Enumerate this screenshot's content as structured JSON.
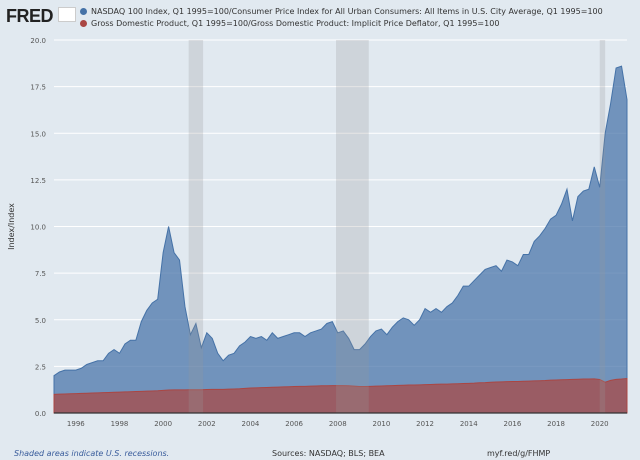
{
  "logo": "FRED",
  "chart_data": {
    "type": "area",
    "ylabel": "Index/Index",
    "ylim": [
      0,
      20
    ],
    "xlim": [
      1995,
      2021.25
    ],
    "yticks": [
      "0.0",
      "2.5",
      "5.0",
      "7.5",
      "10.0",
      "12.5",
      "15.0",
      "17.5",
      "20.0"
    ],
    "xticks": [
      "1996",
      "1998",
      "2000",
      "2002",
      "2004",
      "2006",
      "2008",
      "2010",
      "2012",
      "2014",
      "2016",
      "2018",
      "2020"
    ],
    "grid": true,
    "legend_placement": "top",
    "recessions": [
      [
        2001.17,
        2001.83
      ],
      [
        2007.92,
        2009.42
      ],
      [
        2020.0,
        2020.25
      ]
    ],
    "series": [
      {
        "name": "NASDAQ 100 Index, Q1 1995=100/Consumer Price Index for All Urban Consumers: All Items in U.S. City Average, Q1 1995=100",
        "color": "#4572a7",
        "start": 1995,
        "step": 0.25,
        "values": [
          2.0,
          2.2,
          2.3,
          2.3,
          2.3,
          2.4,
          2.6,
          2.7,
          2.8,
          2.8,
          3.2,
          3.4,
          3.2,
          3.7,
          3.9,
          3.9,
          4.9,
          5.5,
          5.9,
          6.1,
          8.6,
          10.0,
          8.6,
          8.2,
          5.7,
          4.2,
          4.8,
          3.5,
          4.3,
          4.0,
          3.2,
          2.8,
          3.1,
          3.2,
          3.6,
          3.8,
          4.1,
          4.0,
          4.1,
          3.9,
          4.3,
          4.0,
          4.1,
          4.2,
          4.3,
          4.3,
          4.1,
          4.3,
          4.4,
          4.5,
          4.8,
          4.9,
          4.3,
          4.4,
          4.0,
          3.4,
          3.4,
          3.7,
          4.1,
          4.4,
          4.5,
          4.2,
          4.6,
          4.9,
          5.1,
          5.0,
          4.7,
          5.0,
          5.6,
          5.4,
          5.6,
          5.4,
          5.7,
          5.9,
          6.3,
          6.8,
          6.8,
          7.1,
          7.4,
          7.7,
          7.8,
          7.9,
          7.6,
          8.2,
          8.1,
          7.9,
          8.5,
          8.5,
          9.2,
          9.5,
          9.9,
          10.4,
          10.6,
          11.2,
          12.0,
          10.3,
          11.6,
          11.9,
          12.0,
          13.2,
          12.1,
          15.0,
          16.6,
          18.5,
          18.6,
          16.8
        ]
      },
      {
        "name": "Gross Domestic Product, Q1 1995=100/Gross Domestic Product: Implicit Price Deflator, Q1 1995=100",
        "color": "#aa4643",
        "start": 1995,
        "step": 0.25,
        "values": [
          1.0,
          1.01,
          1.02,
          1.03,
          1.04,
          1.05,
          1.06,
          1.07,
          1.08,
          1.09,
          1.1,
          1.11,
          1.12,
          1.13,
          1.14,
          1.15,
          1.16,
          1.17,
          1.18,
          1.19,
          1.21,
          1.23,
          1.24,
          1.24,
          1.24,
          1.25,
          1.25,
          1.25,
          1.26,
          1.27,
          1.27,
          1.27,
          1.28,
          1.29,
          1.3,
          1.32,
          1.34,
          1.35,
          1.36,
          1.37,
          1.38,
          1.39,
          1.4,
          1.41,
          1.42,
          1.43,
          1.43,
          1.44,
          1.45,
          1.46,
          1.46,
          1.47,
          1.47,
          1.47,
          1.46,
          1.44,
          1.42,
          1.42,
          1.43,
          1.44,
          1.45,
          1.46,
          1.47,
          1.48,
          1.49,
          1.5,
          1.5,
          1.51,
          1.52,
          1.53,
          1.54,
          1.55,
          1.55,
          1.56,
          1.57,
          1.58,
          1.59,
          1.6,
          1.62,
          1.63,
          1.65,
          1.66,
          1.67,
          1.68,
          1.69,
          1.69,
          1.7,
          1.71,
          1.72,
          1.73,
          1.74,
          1.76,
          1.77,
          1.78,
          1.79,
          1.8,
          1.81,
          1.82,
          1.82,
          1.83,
          1.8,
          1.65,
          1.75,
          1.8,
          1.82,
          1.85
        ]
      }
    ]
  },
  "footer": {
    "note": "Shaded areas indicate U.S. recessions.",
    "sources": "Sources: NASDAQ; BLS; BEA",
    "link": "myf.red/g/FHMP"
  }
}
